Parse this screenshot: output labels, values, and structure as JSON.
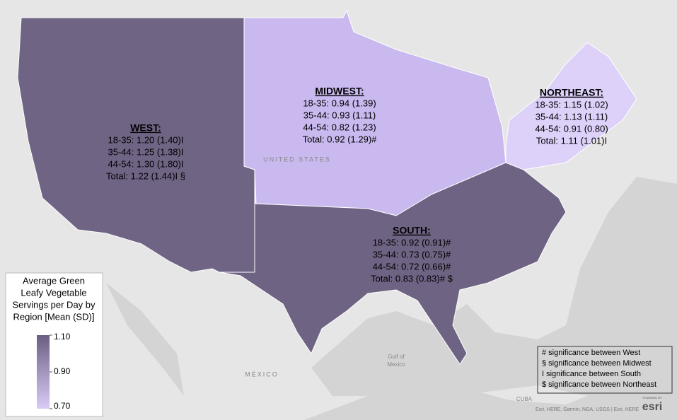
{
  "map": {
    "regions": [
      {
        "name": "WEST:",
        "color": "#706485",
        "lines": [
          "18-35: 1.20 (1.40)I",
          "35-44: 1.25 (1.38)I",
          "44-54: 1.30 (1.80)I",
          "Total: 1.22 (1.44)I §"
        ]
      },
      {
        "name": "MIDWEST:",
        "color": "#c9b9ef",
        "lines": [
          "18-35: 0.94 (1.39)",
          "35-44: 0.93 (1.11)",
          "44-54: 0.82 (1.23)",
          "Total: 0.92 (1.29)#"
        ]
      },
      {
        "name": "NORTHEAST:",
        "color": "#ddd1fa",
        "lines": [
          "18-35: 1.15 (1.02)",
          "35-44: 1.13 (1.11)",
          "44-54: 0.91 (0.80)",
          "Total: 1.11 (1.01)I"
        ]
      },
      {
        "name": "SOUTH:",
        "color": "#6f6383",
        "lines": [
          "18-35: 0.92 (0.91)#",
          "35-44: 0.73 (0.75)#",
          "44-54: 0.72 (0.66)#",
          "Total: 0.83 (0.83)# $"
        ]
      }
    ],
    "legend": {
      "title": [
        "Average Green",
        "Leafy Vegetable",
        "Servings per Day by",
        "Region [Mean (SD)]"
      ],
      "range": [
        0.7,
        1.1
      ],
      "colors": [
        "#d9cbf6",
        "#6c5e82"
      ],
      "ticks": [
        {
          "value": 1.1,
          "label": "1.10"
        },
        {
          "value": 0.9,
          "label": "0.90"
        },
        {
          "value": 0.7,
          "label": "0.70"
        }
      ]
    },
    "footnotes": [
      "# significance between West",
      "§ significance between Midwest",
      "I significance between South",
      "$ significance between Northeast"
    ],
    "place_labels": [
      "UNITED STATES",
      "MÉXICO",
      "Gulf of",
      "Mexico",
      "CUBA"
    ],
    "attribution": "Esri, HERE, Garmin, NGA, USGS | Esri, HERE",
    "logo": {
      "small": "POWERED BY",
      "brand": "esri"
    }
  }
}
